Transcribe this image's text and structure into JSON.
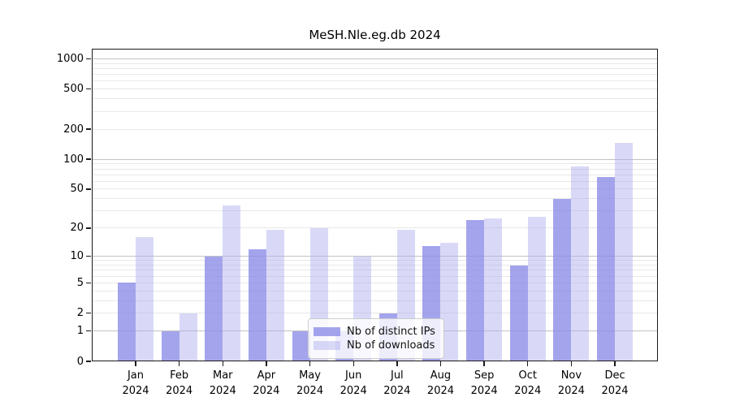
{
  "figure": {
    "title": "MeSH.Nle.eg.db 2024"
  },
  "chart_data": {
    "type": "bar",
    "title": "MeSH.Nle.eg.db 2024",
    "categories": [
      "Jan",
      "Feb",
      "Mar",
      "Apr",
      "May",
      "Jun",
      "Jul",
      "Aug",
      "Sep",
      "Oct",
      "Nov",
      "Dec"
    ],
    "x_year_label": "2024",
    "series": [
      {
        "name": "Nb of distinct IPs",
        "color": "rgba(138,138,232,0.78)",
        "values": [
          5,
          1,
          10,
          12,
          1,
          1,
          2,
          13,
          24,
          8,
          40,
          66
        ]
      },
      {
        "name": "Nb of downloads",
        "color": "rgba(171,171,237,0.45)",
        "values": [
          16,
          2,
          34,
          19,
          20,
          10,
          19,
          14,
          25,
          26,
          85,
          146
        ]
      }
    ],
    "y_scale": "log1p",
    "ylim": [
      0,
      1260
    ],
    "y_ticks": [
      0,
      1,
      2,
      5,
      10,
      20,
      50,
      100,
      200,
      500,
      1000
    ],
    "y_major_grid": [
      1,
      10,
      100,
      1000
    ],
    "y_minor_grid": [
      2,
      3,
      4,
      5,
      6,
      7,
      8,
      9,
      20,
      30,
      40,
      50,
      60,
      70,
      80,
      90,
      200,
      300,
      400,
      500,
      600,
      700,
      800,
      900
    ],
    "grid": true,
    "legend": {
      "position": "lower center",
      "items": [
        "Nb of distinct IPs",
        "Nb of downloads"
      ]
    }
  },
  "colors": {
    "major_grid": "#c3c3c3",
    "minor_grid": "#e8e8e8",
    "axis": "#1a1a1a",
    "text": "#000000",
    "legend_bg": "rgba(255,255,255,0.8)",
    "legend_border": "#cccccc"
  }
}
